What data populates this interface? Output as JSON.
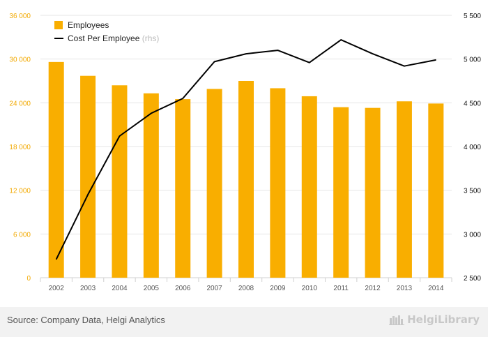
{
  "chart_data": {
    "type": "bar",
    "categories": [
      "2002",
      "2003",
      "2004",
      "2005",
      "2006",
      "2007",
      "2008",
      "2009",
      "2010",
      "2011",
      "2012",
      "2013",
      "2014"
    ],
    "series": [
      {
        "name": "Employees",
        "chart_type": "bar",
        "axis": "left",
        "color": "#f9ae00",
        "values": [
          29600,
          27700,
          26400,
          25300,
          24500,
          25900,
          27000,
          26000,
          24900,
          23400,
          23300,
          24200,
          23900
        ]
      },
      {
        "name": "Cost Per Employee",
        "name_suffix": "(rhs)",
        "chart_type": "line",
        "axis": "right",
        "color": "#000000",
        "values": [
          2710,
          3450,
          4120,
          4380,
          4550,
          4970,
          5060,
          5100,
          4960,
          5220,
          5060,
          4920,
          4990
        ]
      }
    ],
    "y_left": {
      "min": 0,
      "max": 36000,
      "ticks": [
        "0",
        "6 000",
        "12 000",
        "18 000",
        "24 000",
        "30 000",
        "36 000"
      ],
      "tick_values": [
        0,
        6000,
        12000,
        18000,
        24000,
        30000,
        36000
      ]
    },
    "y_right": {
      "min": 2500,
      "max": 5500,
      "ticks": [
        "2 500",
        "3 000",
        "3 500",
        "4 000",
        "4 500",
        "5 000",
        "5 500"
      ],
      "tick_values": [
        2500,
        3000,
        3500,
        4000,
        4500,
        5000,
        5500
      ]
    },
    "title": "",
    "xlabel": "",
    "ylabel": "",
    "grid": true,
    "legend_position": "top-left"
  },
  "footer": {
    "source": "Source: Company Data, Helgi Analytics",
    "brand": "HelgiLibrary"
  }
}
